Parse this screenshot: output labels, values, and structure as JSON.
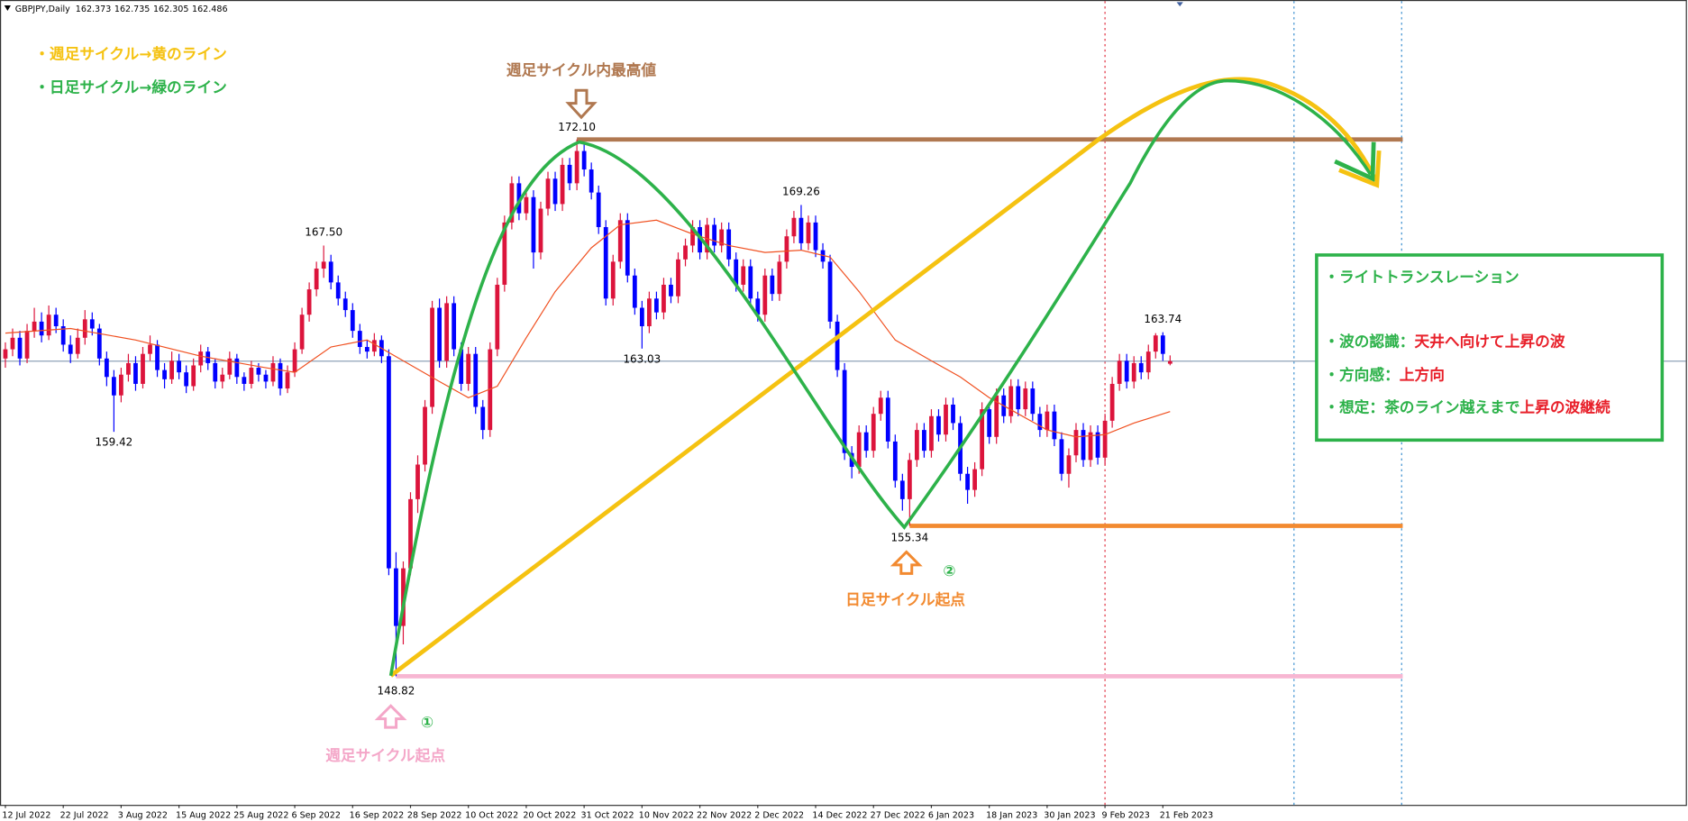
{
  "chart_data": {
    "type": "candlestick",
    "symbol": "GBPJPY,Daily",
    "up_color": "#dc143c",
    "down_color": "#0000ff",
    "ylim": [
      143.24,
      178.15
    ],
    "categories": [
      "12 Jul 2022",
      null,
      null,
      null,
      null,
      null,
      null,
      null,
      "22 Jul 2022",
      null,
      null,
      null,
      null,
      null,
      null,
      null,
      "3 Aug 2022",
      null,
      null,
      null,
      null,
      null,
      null,
      null,
      "15 Aug 2022",
      null,
      null,
      null,
      null,
      null,
      null,
      null,
      "25 Aug 2022",
      null,
      null,
      null,
      null,
      null,
      null,
      null,
      "6 Sep 2022",
      null,
      null,
      null,
      null,
      null,
      null,
      null,
      "16 Sep 2022",
      null,
      null,
      null,
      null,
      null,
      null,
      null,
      "28 Sep 2022",
      null,
      null,
      null,
      null,
      null,
      null,
      null,
      "10 Oct 2022",
      null,
      null,
      null,
      null,
      null,
      null,
      null,
      "20 Oct 2022",
      null,
      null,
      null,
      null,
      null,
      null,
      null,
      "31 Oct 2022",
      null,
      null,
      null,
      null,
      null,
      null,
      null,
      "10 Nov 2022",
      null,
      null,
      null,
      null,
      null,
      null,
      null,
      "22 Nov 2022",
      null,
      null,
      null,
      null,
      null,
      null,
      null,
      "2 Dec 2022",
      null,
      null,
      null,
      null,
      null,
      null,
      null,
      "14 Dec 2022",
      null,
      null,
      null,
      null,
      null,
      null,
      null,
      "27 Dec 2022",
      null,
      null,
      null,
      null,
      null,
      null,
      null,
      "6 Jan 2023",
      null,
      null,
      null,
      null,
      null,
      null,
      null,
      "18 Jan 2023",
      null,
      null,
      null,
      null,
      null,
      null,
      null,
      "30 Jan 2023",
      null,
      null,
      null,
      null,
      null,
      null,
      null,
      "9 Feb 2023",
      null,
      null,
      null,
      null,
      null,
      null,
      null,
      "21 Feb 2023",
      null
    ],
    "candles": [
      [
        162.6,
        163.3,
        162.2,
        163.0
      ],
      [
        163.0,
        163.9,
        162.7,
        163.5
      ],
      [
        163.5,
        163.8,
        162.3,
        162.6
      ],
      [
        162.6,
        164.1,
        162.4,
        163.8
      ],
      [
        163.8,
        164.8,
        163.5,
        164.2
      ],
      [
        164.2,
        164.6,
        163.3,
        163.6
      ],
      [
        163.6,
        164.9,
        163.4,
        164.5
      ],
      [
        164.5,
        164.8,
        163.7,
        164.0
      ],
      [
        164.0,
        164.3,
        162.9,
        163.2
      ],
      [
        163.2,
        163.6,
        162.4,
        162.8
      ],
      [
        162.8,
        163.9,
        162.6,
        163.5
      ],
      [
        163.5,
        164.7,
        163.2,
        164.3
      ],
      [
        164.3,
        164.6,
        163.6,
        163.9
      ],
      [
        163.9,
        164.1,
        162.3,
        162.6
      ],
      [
        162.6,
        162.9,
        161.4,
        161.8
      ],
      [
        161.8,
        162.1,
        159.42,
        161.0
      ],
      [
        161.0,
        162.2,
        160.7,
        161.9
      ],
      [
        161.9,
        162.8,
        161.6,
        162.4
      ],
      [
        162.4,
        162.7,
        161.2,
        161.5
      ],
      [
        161.5,
        163.1,
        161.3,
        162.8
      ],
      [
        162.8,
        163.6,
        162.5,
        163.2
      ],
      [
        163.2,
        163.4,
        161.8,
        162.1
      ],
      [
        162.1,
        162.4,
        161.3,
        161.7
      ],
      [
        161.7,
        162.9,
        161.5,
        162.5
      ],
      [
        162.5,
        162.8,
        161.7,
        162.0
      ],
      [
        162.0,
        162.3,
        161.1,
        161.4
      ],
      [
        161.4,
        162.6,
        161.2,
        162.3
      ],
      [
        162.3,
        163.2,
        162.0,
        162.9
      ],
      [
        162.9,
        163.1,
        162.1,
        162.4
      ],
      [
        162.4,
        162.6,
        161.3,
        161.6
      ],
      [
        161.6,
        162.2,
        161.3,
        161.9
      ],
      [
        161.9,
        162.9,
        161.7,
        162.6
      ],
      [
        162.6,
        162.8,
        161.5,
        161.8
      ],
      [
        161.8,
        162.0,
        161.2,
        161.5
      ],
      [
        161.5,
        162.5,
        161.3,
        162.2
      ],
      [
        162.2,
        162.4,
        161.6,
        161.9
      ],
      [
        161.9,
        162.1,
        161.3,
        161.6
      ],
      [
        161.6,
        162.7,
        161.4,
        162.4
      ],
      [
        162.4,
        162.6,
        161.0,
        161.3
      ],
      [
        161.3,
        162.3,
        161.1,
        162.0
      ],
      [
        162.0,
        163.3,
        161.8,
        163.0
      ],
      [
        163.0,
        164.8,
        162.8,
        164.5
      ],
      [
        164.5,
        165.9,
        164.2,
        165.6
      ],
      [
        165.6,
        166.8,
        165.3,
        166.5
      ],
      [
        166.5,
        167.5,
        166.1,
        166.8
      ],
      [
        166.8,
        167.1,
        165.6,
        165.9
      ],
      [
        165.9,
        166.2,
        164.9,
        165.2
      ],
      [
        165.2,
        165.5,
        164.4,
        164.7
      ],
      [
        164.7,
        165.0,
        163.5,
        163.8
      ],
      [
        163.8,
        164.1,
        162.8,
        163.1
      ],
      [
        163.1,
        163.4,
        162.6,
        162.9
      ],
      [
        162.9,
        163.7,
        162.7,
        163.4
      ],
      [
        163.4,
        163.6,
        162.4,
        162.7
      ],
      [
        162.7,
        163.0,
        153.2,
        153.5
      ],
      [
        153.5,
        154.2,
        148.82,
        151.0
      ],
      [
        151.0,
        153.8,
        150.2,
        153.5
      ],
      [
        153.5,
        156.8,
        153.2,
        156.5
      ],
      [
        156.5,
        158.4,
        155.9,
        158.0
      ],
      [
        158.0,
        160.8,
        157.7,
        160.5
      ],
      [
        160.5,
        165.1,
        160.2,
        164.8
      ],
      [
        164.8,
        165.2,
        162.2,
        162.5
      ],
      [
        162.5,
        165.3,
        162.2,
        165.0
      ],
      [
        165.0,
        165.3,
        162.7,
        163.0
      ],
      [
        163.0,
        163.3,
        161.2,
        161.5
      ],
      [
        161.5,
        163.1,
        161.2,
        162.8
      ],
      [
        162.8,
        163.1,
        160.2,
        160.5
      ],
      [
        160.5,
        160.8,
        159.1,
        159.5
      ],
      [
        159.5,
        163.3,
        159.2,
        163.0
      ],
      [
        163.0,
        166.1,
        162.7,
        165.8
      ],
      [
        165.8,
        168.8,
        165.5,
        168.5
      ],
      [
        168.5,
        170.5,
        168.2,
        170.2
      ],
      [
        170.2,
        170.5,
        168.6,
        168.9
      ],
      [
        168.9,
        169.9,
        168.6,
        169.6
      ],
      [
        169.6,
        169.9,
        166.5,
        167.2
      ],
      [
        167.2,
        169.4,
        166.9,
        169.1
      ],
      [
        169.1,
        170.7,
        168.8,
        170.4
      ],
      [
        170.4,
        170.7,
        169.0,
        169.3
      ],
      [
        169.3,
        171.3,
        169.0,
        171.0
      ],
      [
        171.0,
        171.3,
        169.9,
        170.2
      ],
      [
        170.2,
        172.1,
        169.9,
        171.6
      ],
      [
        171.6,
        171.9,
        170.5,
        170.8
      ],
      [
        170.8,
        171.1,
        169.5,
        169.8
      ],
      [
        169.8,
        170.1,
        168.0,
        168.3
      ],
      [
        168.3,
        168.6,
        164.9,
        165.2
      ],
      [
        165.2,
        167.1,
        164.9,
        166.8
      ],
      [
        166.8,
        168.9,
        166.5,
        168.6
      ],
      [
        168.6,
        168.9,
        165.9,
        166.2
      ],
      [
        166.2,
        166.5,
        164.5,
        164.8
      ],
      [
        164.8,
        165.1,
        163.03,
        164.0
      ],
      [
        164.0,
        165.5,
        163.7,
        165.2
      ],
      [
        165.2,
        165.5,
        164.3,
        164.6
      ],
      [
        164.6,
        166.1,
        164.3,
        165.8
      ],
      [
        165.8,
        166.1,
        165.0,
        165.3
      ],
      [
        165.3,
        167.2,
        165.0,
        166.9
      ],
      [
        166.9,
        167.8,
        166.6,
        167.5
      ],
      [
        167.5,
        168.6,
        167.2,
        168.3
      ],
      [
        168.3,
        168.6,
        166.9,
        167.2
      ],
      [
        167.2,
        168.7,
        166.9,
        168.4
      ],
      [
        168.4,
        168.7,
        167.2,
        167.5
      ],
      [
        167.5,
        168.5,
        167.2,
        168.2
      ],
      [
        168.2,
        168.5,
        166.6,
        166.9
      ],
      [
        166.9,
        167.2,
        165.5,
        165.8
      ],
      [
        165.8,
        166.9,
        165.5,
        166.6
      ],
      [
        166.6,
        166.9,
        164.9,
        165.2
      ],
      [
        165.2,
        165.5,
        164.2,
        164.5
      ],
      [
        164.5,
        166.5,
        164.2,
        166.2
      ],
      [
        166.2,
        166.5,
        165.1,
        165.4
      ],
      [
        165.4,
        167.1,
        165.1,
        166.8
      ],
      [
        166.8,
        168.2,
        166.5,
        167.9
      ],
      [
        167.9,
        169.0,
        167.6,
        168.7
      ],
      [
        168.7,
        169.26,
        167.3,
        167.6
      ],
      [
        167.6,
        168.8,
        167.3,
        168.5
      ],
      [
        168.5,
        168.8,
        167.0,
        167.3
      ],
      [
        167.3,
        167.6,
        166.5,
        166.8
      ],
      [
        166.8,
        167.1,
        163.9,
        164.2
      ],
      [
        164.2,
        164.5,
        161.8,
        162.1
      ],
      [
        162.1,
        162.4,
        158.2,
        158.5
      ],
      [
        158.5,
        158.8,
        157.4,
        157.9
      ],
      [
        157.9,
        159.7,
        157.6,
        159.4
      ],
      [
        159.4,
        159.7,
        158.3,
        158.6
      ],
      [
        158.6,
        160.5,
        158.3,
        160.2
      ],
      [
        160.2,
        161.2,
        159.9,
        160.9
      ],
      [
        160.9,
        161.2,
        158.7,
        159.0
      ],
      [
        159.0,
        159.3,
        157.0,
        157.3
      ],
      [
        157.3,
        157.6,
        156.0,
        156.5
      ],
      [
        156.5,
        158.5,
        155.34,
        158.2
      ],
      [
        158.2,
        159.8,
        157.9,
        159.5
      ],
      [
        159.5,
        159.8,
        158.3,
        158.6
      ],
      [
        158.6,
        160.4,
        158.3,
        160.1
      ],
      [
        160.1,
        160.4,
        159.0,
        159.3
      ],
      [
        159.3,
        160.9,
        159.0,
        160.6
      ],
      [
        160.6,
        160.9,
        159.5,
        159.8
      ],
      [
        159.8,
        160.1,
        157.3,
        157.6
      ],
      [
        157.6,
        157.9,
        156.3,
        156.9
      ],
      [
        156.9,
        158.1,
        156.6,
        157.8
      ],
      [
        157.8,
        160.7,
        157.5,
        160.4
      ],
      [
        160.4,
        160.7,
        158.9,
        159.2
      ],
      [
        159.2,
        161.3,
        158.9,
        161.0
      ],
      [
        161.0,
        161.3,
        159.8,
        160.1
      ],
      [
        160.1,
        161.7,
        159.8,
        161.4
      ],
      [
        161.4,
        161.7,
        160.1,
        160.4
      ],
      [
        160.4,
        161.6,
        160.1,
        161.3
      ],
      [
        161.3,
        161.6,
        159.9,
        160.2
      ],
      [
        160.2,
        160.5,
        159.2,
        159.5
      ],
      [
        159.5,
        160.6,
        159.2,
        160.3
      ],
      [
        160.3,
        160.6,
        158.8,
        159.1
      ],
      [
        159.1,
        159.4,
        157.3,
        157.6
      ],
      [
        157.6,
        158.7,
        157.0,
        158.4
      ],
      [
        158.4,
        159.8,
        158.1,
        159.5
      ],
      [
        159.5,
        159.8,
        157.9,
        158.2
      ],
      [
        158.2,
        159.7,
        157.9,
        159.4
      ],
      [
        159.4,
        159.7,
        158.0,
        158.3
      ],
      [
        158.3,
        160.2,
        158.0,
        159.9
      ],
      [
        159.9,
        161.8,
        159.6,
        161.5
      ],
      [
        161.5,
        162.8,
        161.2,
        162.5
      ],
      [
        162.5,
        162.8,
        161.3,
        161.6
      ],
      [
        161.6,
        162.7,
        161.3,
        162.4
      ],
      [
        162.4,
        162.7,
        161.7,
        162.0
      ],
      [
        162.0,
        163.2,
        161.7,
        162.9
      ],
      [
        162.9,
        163.7,
        162.6,
        163.6
      ],
      [
        163.6,
        163.74,
        162.5,
        162.8
      ],
      [
        162.373,
        162.735,
        162.305,
        162.486
      ]
    ],
    "ma": {
      "color": "#f05020",
      "x": [
        0,
        9,
        18,
        27,
        36,
        40,
        45,
        50,
        55,
        60,
        64,
        68,
        72,
        76,
        81,
        85,
        90,
        95,
        100,
        105,
        110,
        114,
        118,
        123,
        128,
        132,
        136,
        140,
        144,
        148,
        152,
        156,
        161
      ],
      "values": [
        163.7,
        163.9,
        163.4,
        162.7,
        162.2,
        162.0,
        163.1,
        163.4,
        162.5,
        161.6,
        160.9,
        161.4,
        163.5,
        165.5,
        167.4,
        168.4,
        168.6,
        168.0,
        167.5,
        167.2,
        167.3,
        167.0,
        165.5,
        163.4,
        162.5,
        161.8,
        160.9,
        160.2,
        159.5,
        159.2,
        159.3,
        159.8,
        160.3
      ]
    },
    "price_labels": [
      {
        "x": 79,
        "value": 172.1,
        "label": "172.10"
      },
      {
        "x": 44,
        "value": 167.5,
        "label": "167.50"
      },
      {
        "x": 15,
        "value": 159.42,
        "label": "159.42"
      },
      {
        "x": 88,
        "value": 163.03,
        "label": "163.03"
      },
      {
        "x": 110,
        "value": 169.26,
        "label": "169.26"
      },
      {
        "x": 125,
        "value": 155.34,
        "label": "155.34"
      },
      {
        "x": 54,
        "value": 148.82,
        "label": "148.82"
      },
      {
        "x": 160,
        "value": 163.74,
        "label": "163.74"
      }
    ]
  },
  "annotations": {
    "legend_weekly": "・週足サイクル→黄のライン",
    "legend_daily": "・日足サイクル→緑のライン",
    "weekly_high": "週足サイクル内最高値",
    "daily_start": "日足サイクル起点",
    "weekly_start": "週足サイクル起点",
    "mark_1": "①",
    "mark_2": "②"
  },
  "notes": [
    [
      "・ライトトランスレーション"
    ],
    [
      "・波の認識：",
      "天井へ向けて上昇の波"
    ],
    [
      "・方向感：",
      "上方向"
    ],
    [
      "・想定：茶のライン越えまで",
      "上昇の波継続"
    ]
  ]
}
